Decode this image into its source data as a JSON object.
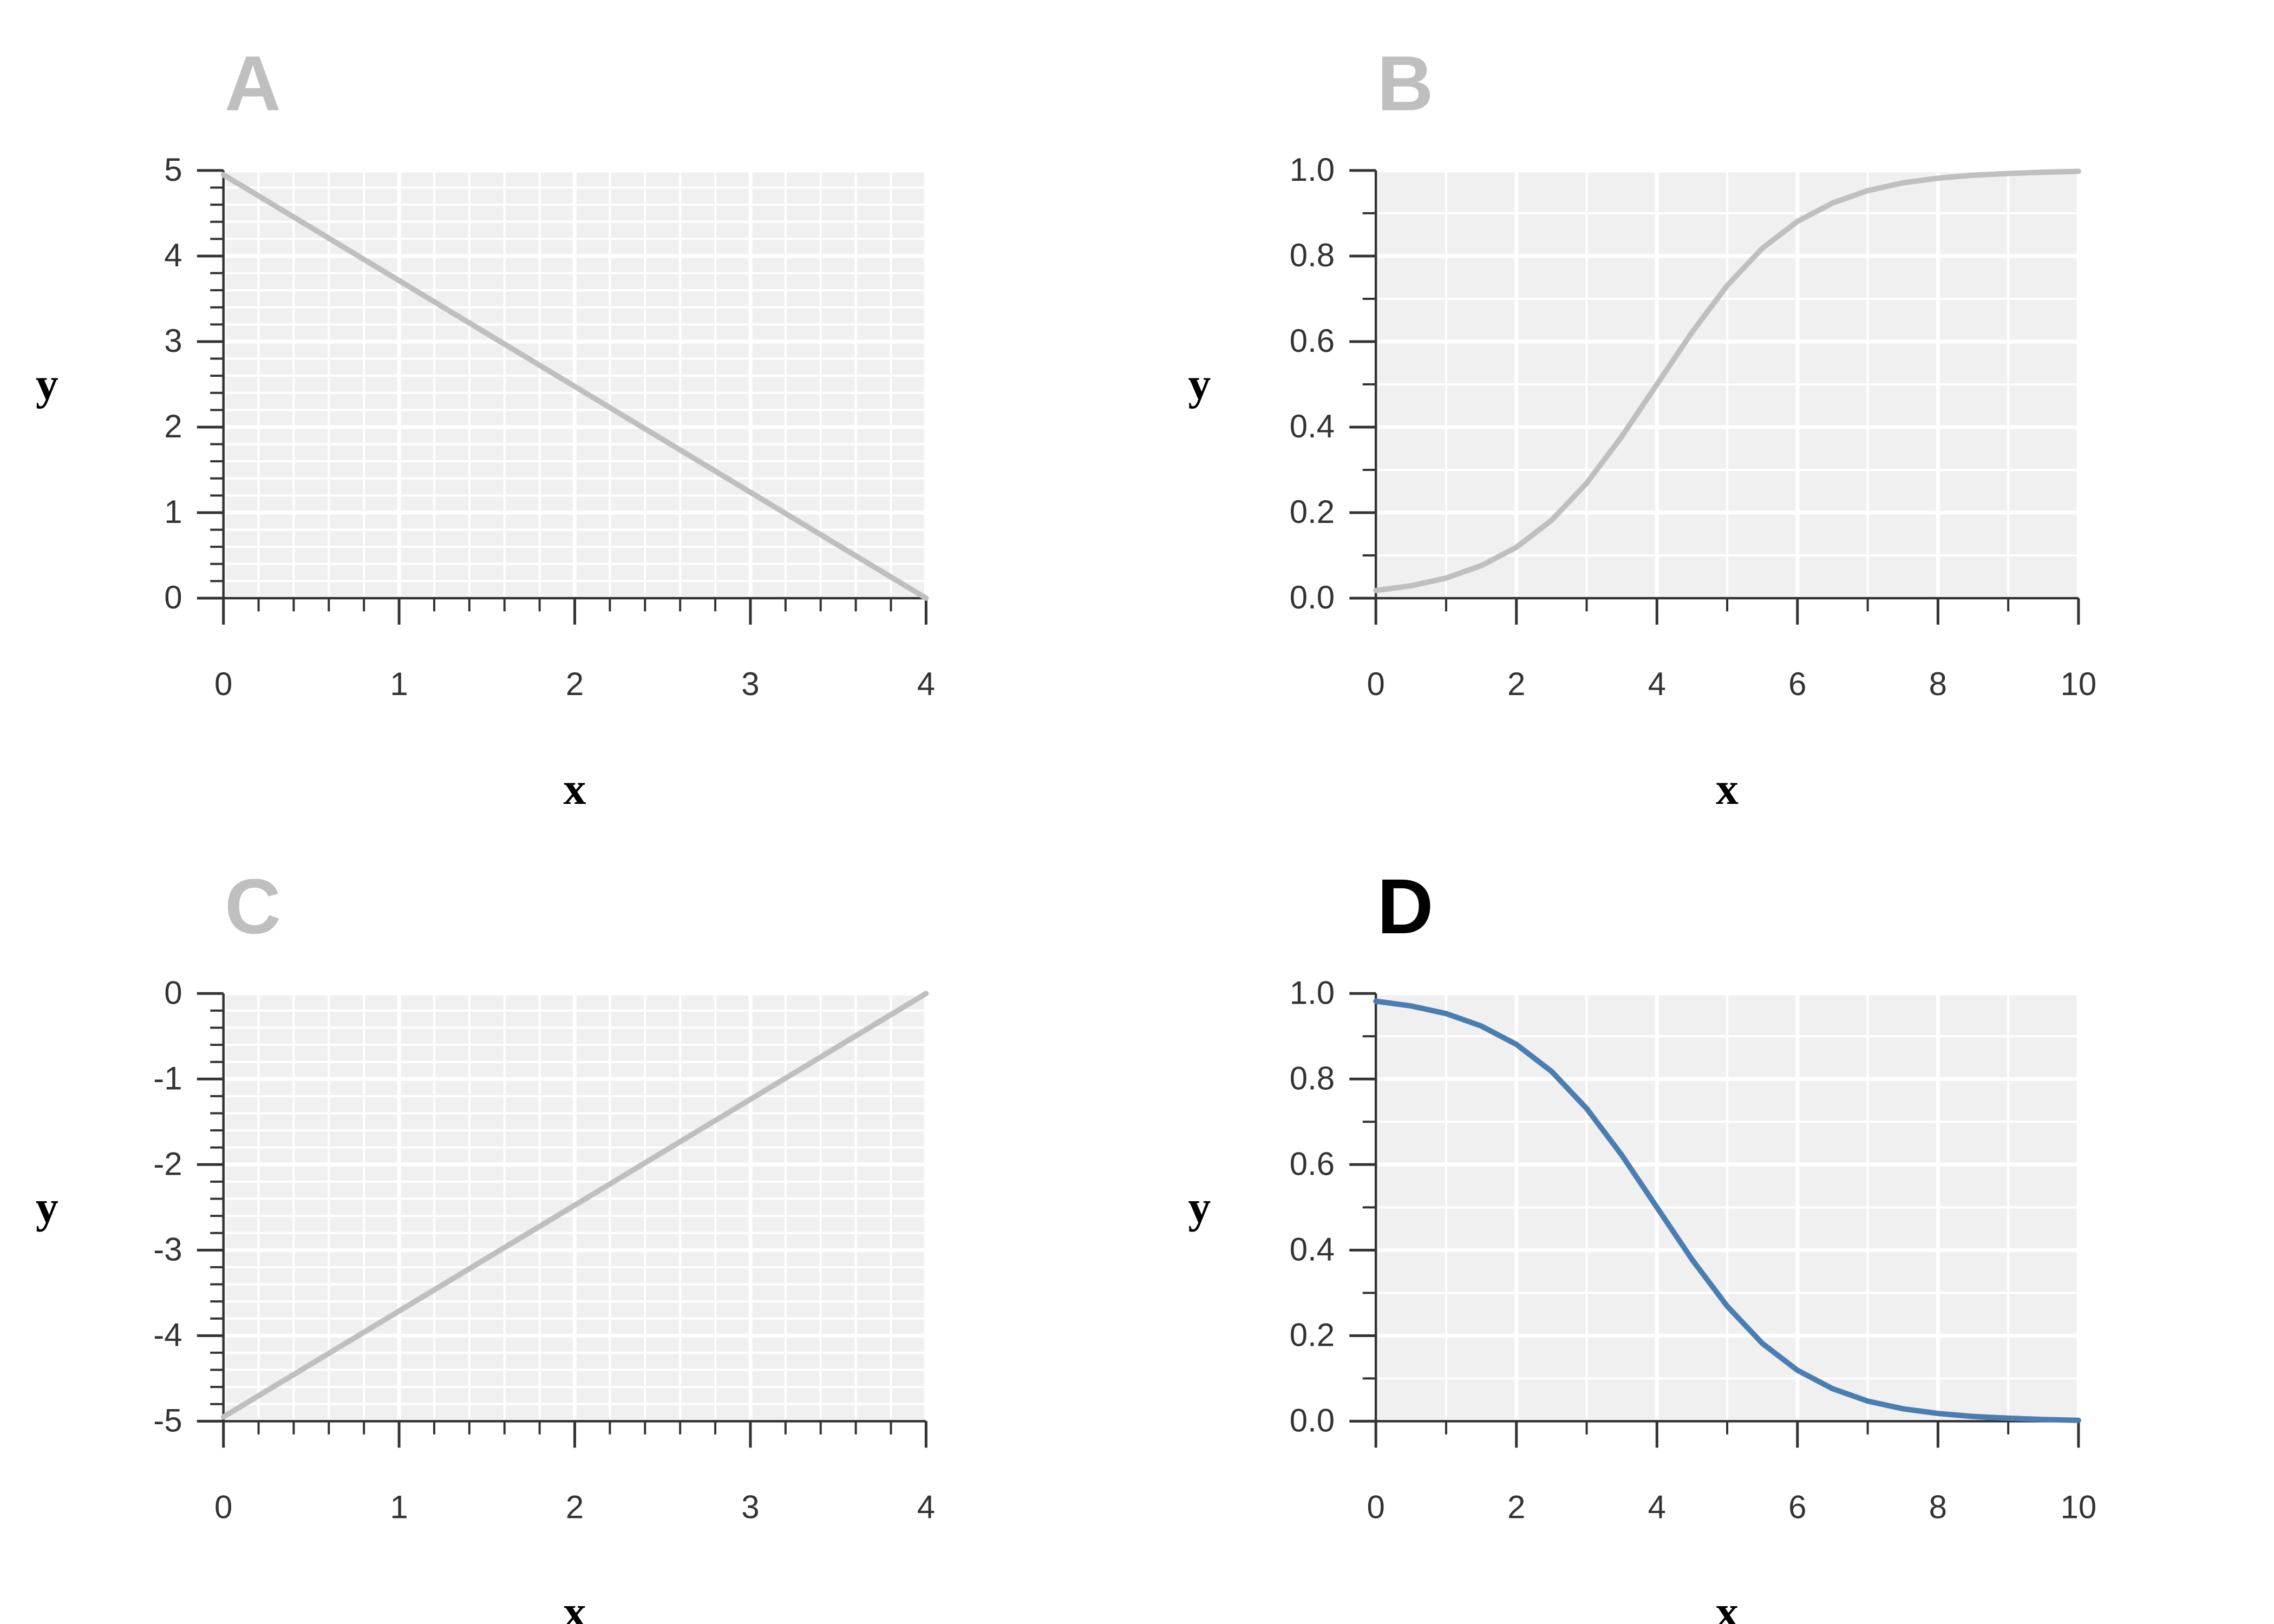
{
  "figure": {
    "background": "#ffffff",
    "plot_background": "#f0f0f0",
    "grid_color": "#ffffff",
    "axis_color": "#333333",
    "inactive_color": "#bfbfbf",
    "active_line_color": "#4a7eb3",
    "active_label_color": "#000000"
  },
  "chart_data": [
    {
      "panel": "A",
      "active": false,
      "type": "line",
      "xlabel": "x",
      "ylabel": "y",
      "xlim": [
        0,
        4
      ],
      "ylim": [
        0,
        5
      ],
      "xticks": [
        0,
        1,
        2,
        3,
        4
      ],
      "xtick_labels": [
        "0",
        "1",
        "2",
        "3",
        "4"
      ],
      "yticks": [
        0,
        1,
        2,
        3,
        4,
        5
      ],
      "ytick_labels": [
        "0",
        "1",
        "2",
        "3",
        "4",
        "5"
      ],
      "x_minor_step": 0.2,
      "y_minor_step": 0.2,
      "grid": true,
      "series": [
        {
          "x": [
            0,
            4
          ],
          "y": [
            4.95,
            0
          ]
        }
      ]
    },
    {
      "panel": "B",
      "active": false,
      "type": "line",
      "xlabel": "x",
      "ylabel": "y",
      "xlim": [
        0,
        10
      ],
      "ylim": [
        0,
        1
      ],
      "xticks": [
        0,
        2,
        4,
        6,
        8,
        10
      ],
      "xtick_labels": [
        "0",
        "2",
        "4",
        "6",
        "8",
        "10"
      ],
      "yticks": [
        0,
        0.2,
        0.4,
        0.6,
        0.8,
        1.0
      ],
      "ytick_labels": [
        "0.0",
        "0.2",
        "0.4",
        "0.6",
        "0.8",
        "1.0"
      ],
      "x_minor_step": 1,
      "y_minor_step": 0.1,
      "grid": true,
      "series": [
        {
          "x": [
            0,
            0.5,
            1,
            1.5,
            2,
            2.5,
            3,
            3.5,
            4,
            4.5,
            5,
            5.5,
            6,
            6.5,
            7,
            7.5,
            8,
            8.5,
            9,
            9.5,
            10
          ],
          "y": [
            0.018,
            0.029,
            0.047,
            0.076,
            0.119,
            0.182,
            0.269,
            0.378,
            0.5,
            0.622,
            0.731,
            0.818,
            0.881,
            0.924,
            0.953,
            0.971,
            0.982,
            0.989,
            0.993,
            0.996,
            0.998
          ]
        }
      ]
    },
    {
      "panel": "C",
      "active": false,
      "type": "line",
      "xlabel": "x",
      "ylabel": "y",
      "xlim": [
        0,
        4
      ],
      "ylim": [
        -5,
        0
      ],
      "xticks": [
        0,
        1,
        2,
        3,
        4
      ],
      "xtick_labels": [
        "0",
        "1",
        "2",
        "3",
        "4"
      ],
      "yticks": [
        -5,
        -4,
        -3,
        -2,
        -1,
        0
      ],
      "ytick_labels": [
        "-5",
        "-4",
        "-3",
        "-2",
        "-1",
        "0"
      ],
      "x_minor_step": 0.2,
      "y_minor_step": 0.2,
      "grid": true,
      "series": [
        {
          "x": [
            0,
            4
          ],
          "y": [
            -4.95,
            0
          ]
        }
      ]
    },
    {
      "panel": "D",
      "active": true,
      "type": "line",
      "xlabel": "x",
      "ylabel": "y",
      "xlim": [
        0,
        10
      ],
      "ylim": [
        0,
        1
      ],
      "xticks": [
        0,
        2,
        4,
        6,
        8,
        10
      ],
      "xtick_labels": [
        "0",
        "2",
        "4",
        "6",
        "8",
        "10"
      ],
      "yticks": [
        0,
        0.2,
        0.4,
        0.6,
        0.8,
        1.0
      ],
      "ytick_labels": [
        "0.0",
        "0.2",
        "0.4",
        "0.6",
        "0.8",
        "1.0"
      ],
      "x_minor_step": 1,
      "y_minor_step": 0.1,
      "grid": true,
      "series": [
        {
          "x": [
            0,
            0.5,
            1,
            1.5,
            2,
            2.5,
            3,
            3.5,
            4,
            4.5,
            5,
            5.5,
            6,
            6.5,
            7,
            7.5,
            8,
            8.5,
            9,
            9.5,
            10
          ],
          "y": [
            0.982,
            0.971,
            0.953,
            0.924,
            0.881,
            0.818,
            0.731,
            0.622,
            0.5,
            0.378,
            0.269,
            0.182,
            0.119,
            0.076,
            0.047,
            0.029,
            0.018,
            0.011,
            0.007,
            0.004,
            0.002
          ]
        }
      ]
    }
  ]
}
